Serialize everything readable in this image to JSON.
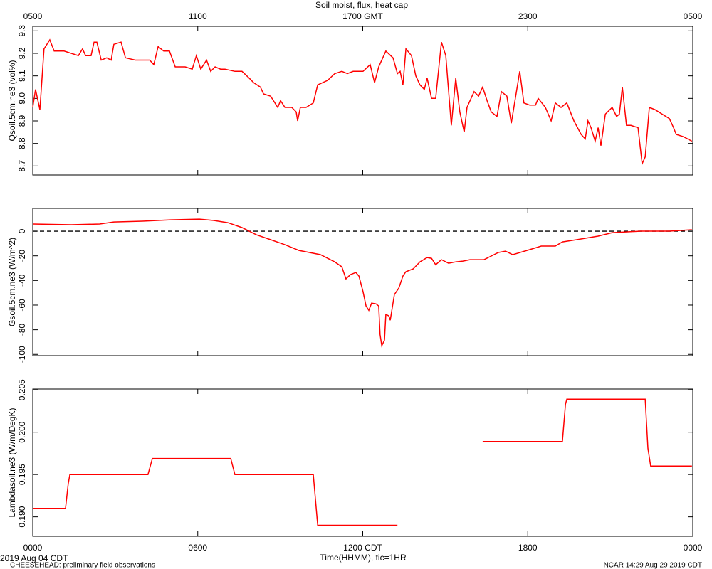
{
  "title": "Soil moist, flux, heat cap",
  "x_label": "Time(HHMM), tic=1HR",
  "date_label": "2019 Aug 04 CDT",
  "footer_left": "CHEESEHEAD: preliminary field observations",
  "footer_right": "NCAR 14:29 Aug 29 2019 CDT",
  "xlim": [
    0,
    24
  ],
  "xticks": [
    {
      "value": 0,
      "label": "0000"
    },
    {
      "value": 6,
      "label": "0600"
    },
    {
      "value": 12,
      "label": "1200 CDT"
    },
    {
      "value": 18,
      "label": "1800"
    },
    {
      "value": 24,
      "label": "0000"
    }
  ],
  "x2ticks": [
    {
      "value": 0,
      "label": "0500"
    },
    {
      "value": 6,
      "label": "1100"
    },
    {
      "value": 12,
      "label": "1700 GMT"
    },
    {
      "value": 18,
      "label": "2300"
    },
    {
      "value": 24,
      "label": "0500"
    }
  ],
  "chart_data": [
    {
      "type": "line",
      "y_label": "Qsoil.5cm.ne3 (vol%)",
      "color": "#ff0000",
      "ylim": [
        8.66,
        9.32
      ],
      "yticks": [
        8.7,
        8.8,
        8.9,
        {
          "value": 9.0,
          "label": "9.0"
        },
        9.1,
        9.2,
        9.3
      ],
      "x": [
        0,
        0.1,
        0.26,
        0.41,
        0.62,
        0.78,
        1.14,
        1.66,
        1.81,
        1.92,
        2.12,
        2.23,
        2.33,
        2.49,
        2.69,
        2.85,
        2.95,
        3.21,
        3.37,
        3.73,
        3.99,
        4.25,
        4.4,
        4.56,
        4.76,
        4.97,
        5.18,
        5.54,
        5.8,
        5.95,
        6.11,
        6.32,
        6.47,
        6.63,
        6.83,
        6.99,
        7.35,
        7.61,
        7.87,
        8.03,
        8.28,
        8.39,
        8.65,
        8.91,
        9.01,
        9.17,
        9.42,
        9.58,
        9.63,
        9.73,
        9.94,
        10.2,
        10.36,
        10.72,
        10.98,
        11.24,
        11.44,
        11.65,
        12.01,
        12.27,
        12.43,
        12.58,
        12.84,
        13.1,
        13.26,
        13.36,
        13.46,
        13.57,
        13.77,
        13.93,
        14.08,
        14.24,
        14.34,
        14.5,
        14.65,
        14.86,
        15.02,
        15.22,
        15.38,
        15.53,
        15.69,
        15.79,
        16.05,
        16.21,
        16.36,
        16.52,
        16.67,
        16.88,
        17.04,
        17.24,
        17.4,
        17.71,
        17.86,
        18.07,
        18.28,
        18.38,
        18.64,
        18.85,
        19.0,
        19.21,
        19.42,
        19.68,
        19.94,
        20.09,
        20.19,
        20.3,
        20.45,
        20.56,
        20.66,
        20.82,
        21.07,
        21.23,
        21.33,
        21.44,
        21.59,
        21.75,
        22.01,
        22.16,
        22.27,
        22.42,
        22.63,
        22.89,
        23.15,
        23.3,
        23.4,
        23.66,
        23.97
      ],
      "values": [
        8.96,
        9.04,
        8.95,
        9.22,
        9.26,
        9.21,
        9.21,
        9.19,
        9.22,
        9.19,
        9.19,
        9.25,
        9.25,
        9.17,
        9.18,
        9.17,
        9.24,
        9.25,
        9.18,
        9.17,
        9.17,
        9.17,
        9.15,
        9.23,
        9.21,
        9.21,
        9.14,
        9.14,
        9.13,
        9.19,
        9.13,
        9.17,
        9.12,
        9.14,
        9.13,
        9.13,
        9.12,
        9.12,
        9.09,
        9.07,
        9.05,
        9.02,
        9.01,
        8.96,
        8.99,
        8.96,
        8.96,
        8.94,
        8.9,
        8.96,
        8.96,
        8.98,
        9.06,
        9.08,
        9.11,
        9.12,
        9.11,
        9.12,
        9.12,
        9.15,
        9.07,
        9.14,
        9.21,
        9.18,
        9.11,
        9.12,
        9.06,
        9.22,
        9.19,
        9.1,
        9.06,
        9.04,
        9.09,
        9.0,
        9.0,
        9.25,
        9.19,
        8.88,
        9.09,
        8.94,
        8.85,
        8.96,
        9.03,
        9.01,
        9.05,
        8.99,
        8.94,
        8.92,
        9.03,
        9.01,
        8.89,
        9.12,
        8.98,
        8.97,
        8.97,
        9.0,
        8.96,
        8.9,
        8.98,
        8.96,
        8.98,
        8.9,
        8.84,
        8.82,
        8.9,
        8.87,
        8.81,
        8.87,
        8.79,
        8.93,
        8.96,
        8.92,
        8.93,
        9.05,
        8.88,
        8.88,
        8.87,
        8.71,
        8.74,
        8.96,
        8.95,
        8.93,
        8.91,
        8.87,
        8.84,
        8.83,
        8.81
      ]
    },
    {
      "type": "line",
      "y_label": "Gsoil.5cm.ne3 (W/m^2)",
      "color": "#ff0000",
      "hline": 0,
      "ylim": [
        -101,
        18.5
      ],
      "yticks": [
        0,
        -20,
        -40,
        -60,
        -80,
        -100
      ],
      "x": [
        0,
        1.4,
        2.43,
        2.95,
        3.99,
        5.02,
        6.06,
        6.58,
        7.09,
        7.61,
        8.13,
        8.65,
        9.17,
        9.68,
        10.46,
        10.98,
        11.24,
        11.39,
        11.55,
        11.75,
        11.86,
        12.01,
        12.12,
        12.22,
        12.32,
        12.48,
        12.58,
        12.63,
        12.69,
        12.79,
        12.84,
        12.95,
        13.0,
        13.15,
        13.31,
        13.46,
        13.57,
        13.83,
        14.08,
        14.34,
        14.5,
        14.65,
        14.86,
        15.12,
        15.38,
        15.64,
        15.9,
        16.41,
        16.67,
        16.93,
        17.19,
        17.45,
        17.97,
        18.49,
        19.0,
        19.26,
        19.78,
        20.56,
        21.07,
        22.11,
        23.15,
        23.97
      ],
      "values": [
        5.8,
        5.2,
        5.8,
        7.5,
        8.1,
        9.2,
        9.8,
        8.7,
        6.9,
        2.9,
        -2.9,
        -6.9,
        -11,
        -15.6,
        -19,
        -24.9,
        -28.9,
        -38.7,
        -35.3,
        -33.5,
        -36.4,
        -49.1,
        -60.7,
        -64.2,
        -58.4,
        -59,
        -60.7,
        -83.8,
        -93,
        -88.4,
        -67.6,
        -68.8,
        -72.3,
        -51.4,
        -46.2,
        -36.4,
        -32.9,
        -30.6,
        -24.9,
        -21.4,
        -22,
        -27.2,
        -23.1,
        -26,
        -24.9,
        -24.3,
        -23.1,
        -23.1,
        -20.2,
        -17.3,
        -16.2,
        -19.1,
        -15.6,
        -12.1,
        -12.1,
        -8.7,
        -6.9,
        -4,
        -1.2,
        0,
        0,
        1.2
      ]
    },
    {
      "type": "line",
      "y_label": "Lambdasoil.ne3 (W/m/DegK)",
      "color": "#ff0000",
      "ylim": [
        0.1877,
        0.2051
      ],
      "yticks": [
        {
          "value": 0.19,
          "label": "0.190"
        },
        0.195,
        {
          "value": 0.2,
          "label": "0.200"
        },
        0.205
      ],
      "x": [
        0,
        1.19,
        1.29,
        1.35,
        4.19,
        4.35,
        7.2,
        7.35,
        10.2,
        10.36,
        13.26,
        15.0,
        16.36,
        19.26,
        19.37,
        19.42,
        22.27,
        22.37,
        22.47,
        23.97
      ],
      "values": [
        0.191,
        0.191,
        0.1939,
        0.195,
        0.195,
        0.1969,
        0.1969,
        0.195,
        0.195,
        0.189,
        0.189,
        null,
        0.1989,
        0.1989,
        0.2033,
        0.2039,
        0.2039,
        0.1981,
        0.196,
        0.196
      ]
    }
  ]
}
